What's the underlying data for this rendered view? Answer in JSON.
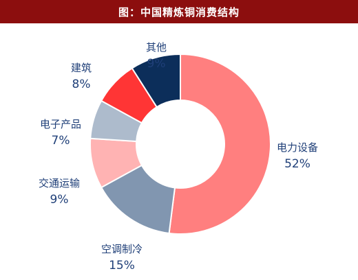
{
  "header": {
    "title": "图：中国精炼铜消费结构"
  },
  "chart_data": {
    "type": "pie",
    "donut": true,
    "start_angle_deg": 0,
    "direction": "clockwise",
    "slices": [
      {
        "label": "电力设备",
        "value": 52,
        "value_label": "52%",
        "color": "#ff7f7f"
      },
      {
        "label": "空调制冷",
        "value": 15,
        "value_label": "15%",
        "color": "#8196b0"
      },
      {
        "label": "交通运输",
        "value": 9,
        "value_label": "9%",
        "color": "#ffb3b3"
      },
      {
        "label": "电子产品",
        "value": 7,
        "value_label": "7%",
        "color": "#adbbcc"
      },
      {
        "label": "建筑",
        "value": 8,
        "value_label": "8%",
        "color": "#ff3535"
      },
      {
        "label": "其他",
        "value": 9,
        "value_label": "9%",
        "color": "#0c2e5a"
      }
    ],
    "label_color": "#1f3f78"
  }
}
